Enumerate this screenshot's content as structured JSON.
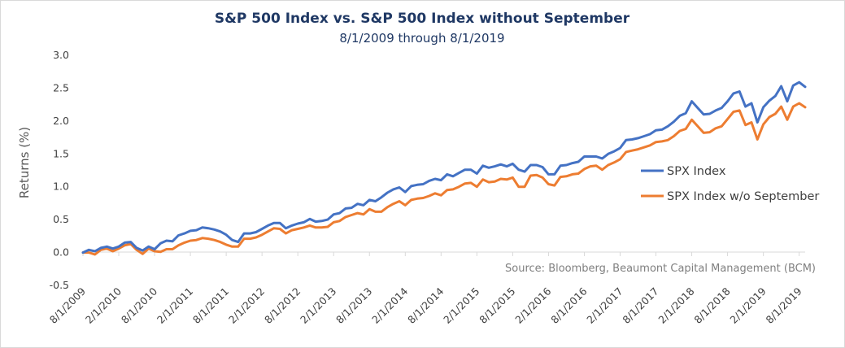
{
  "chart_data": {
    "type": "line",
    "title": "S&P 500 Index vs. S&P 500 Index without September",
    "subtitle": "8/1/2009 through 8/1/2019",
    "ylabel": "Returns (%)",
    "ylim": [
      -0.5,
      3.0
    ],
    "yticks": [
      "3.0",
      "2.5",
      "2.0",
      "1.5",
      "1.0",
      "0.5",
      "0.0",
      "-0.5"
    ],
    "xticks": [
      "8/1/2009",
      "2/1/2010",
      "8/1/2010",
      "2/1/2011",
      "8/1/2011",
      "2/1/2012",
      "8/1/2012",
      "2/1/2013",
      "8/1/2013",
      "2/1/2014",
      "8/1/2014",
      "2/1/2015",
      "8/1/2015",
      "2/1/2016",
      "8/1/2016",
      "2/1/2017",
      "8/1/2017",
      "2/1/2018",
      "8/1/2018",
      "2/1/2019",
      "8/1/2019"
    ],
    "grid": false,
    "legend_position": "right",
    "source": "Source: Bloomberg, Beaumont Capital Management (BCM)",
    "x_start": "8/1/2009",
    "x_end": "8/1/2019",
    "x_frequency": "monthly",
    "series": [
      {
        "name": "SPX Index",
        "color": "#4472c4",
        "values": [
          0.0,
          0.04,
          0.02,
          0.07,
          0.09,
          0.06,
          0.09,
          0.15,
          0.16,
          0.07,
          0.03,
          0.09,
          0.05,
          0.14,
          0.18,
          0.17,
          0.26,
          0.29,
          0.33,
          0.34,
          0.38,
          0.37,
          0.35,
          0.32,
          0.27,
          0.19,
          0.16,
          0.29,
          0.29,
          0.31,
          0.36,
          0.41,
          0.45,
          0.45,
          0.37,
          0.41,
          0.44,
          0.46,
          0.51,
          0.47,
          0.48,
          0.5,
          0.58,
          0.6,
          0.67,
          0.68,
          0.74,
          0.72,
          0.8,
          0.78,
          0.84,
          0.91,
          0.96,
          0.99,
          0.92,
          1.01,
          1.03,
          1.04,
          1.09,
          1.12,
          1.1,
          1.19,
          1.16,
          1.21,
          1.26,
          1.26,
          1.2,
          1.32,
          1.29,
          1.31,
          1.34,
          1.31,
          1.35,
          1.26,
          1.23,
          1.33,
          1.33,
          1.3,
          1.19,
          1.19,
          1.32,
          1.33,
          1.36,
          1.38,
          1.46,
          1.46,
          1.46,
          1.43,
          1.5,
          1.54,
          1.59,
          1.71,
          1.72,
          1.74,
          1.77,
          1.8,
          1.86,
          1.87,
          1.92,
          1.99,
          2.08,
          2.12,
          2.3,
          2.2,
          2.1,
          2.11,
          2.16,
          2.2,
          2.3,
          2.42,
          2.45,
          2.22,
          2.27,
          1.98,
          2.21,
          2.31,
          2.38,
          2.53,
          2.3,
          2.54,
          2.59,
          2.52
        ]
      },
      {
        "name": "SPX Index w/o September",
        "color": "#ed7d31",
        "values": [
          0.0,
          0.0,
          -0.03,
          0.04,
          0.06,
          0.02,
          0.06,
          0.11,
          0.13,
          0.04,
          -0.02,
          0.06,
          0.02,
          0.01,
          0.05,
          0.05,
          0.11,
          0.15,
          0.18,
          0.19,
          0.22,
          0.21,
          0.19,
          0.16,
          0.12,
          0.09,
          0.09,
          0.21,
          0.21,
          0.23,
          0.27,
          0.32,
          0.37,
          0.36,
          0.29,
          0.34,
          0.36,
          0.38,
          0.41,
          0.38,
          0.38,
          0.39,
          0.46,
          0.48,
          0.54,
          0.57,
          0.6,
          0.58,
          0.66,
          0.62,
          0.62,
          0.69,
          0.74,
          0.78,
          0.72,
          0.8,
          0.82,
          0.83,
          0.86,
          0.9,
          0.87,
          0.95,
          0.96,
          1.0,
          1.05,
          1.06,
          1.0,
          1.11,
          1.07,
          1.08,
          1.12,
          1.11,
          1.14,
          1.0,
          1.0,
          1.17,
          1.18,
          1.14,
          1.04,
          1.02,
          1.15,
          1.16,
          1.19,
          1.2,
          1.27,
          1.31,
          1.32,
          1.26,
          1.33,
          1.37,
          1.42,
          1.53,
          1.55,
          1.57,
          1.6,
          1.63,
          1.68,
          1.69,
          1.71,
          1.77,
          1.85,
          1.88,
          2.02,
          1.92,
          1.82,
          1.83,
          1.89,
          1.92,
          2.03,
          2.14,
          2.16,
          1.94,
          1.98,
          1.72,
          1.95,
          2.06,
          2.11,
          2.22,
          2.02,
          2.22,
          2.27,
          2.21
        ]
      }
    ]
  }
}
